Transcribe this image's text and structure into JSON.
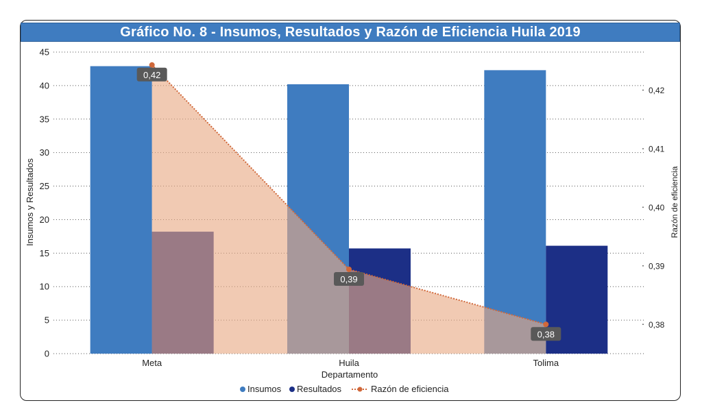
{
  "chart_data": {
    "type": "bar",
    "title": "Gráfico No. 8 - Insumos, Resultados y Razón de Eficiencia Huila 2019",
    "categories": [
      "Meta",
      "Huila",
      "Tolima"
    ],
    "xlabel": "Departamento",
    "ylabel": "Insumos y Resultados",
    "y2label": "Razón de eficiencia",
    "ylim": [
      0,
      45
    ],
    "yticks": [
      "0",
      "5",
      "10",
      "15",
      "20",
      "25",
      "30",
      "35",
      "40",
      "45"
    ],
    "y2lim": [
      0.375,
      0.4265
    ],
    "y2ticks": [
      {
        "value": 0.38,
        "label": "0,38"
      },
      {
        "value": 0.39,
        "label": "0,39"
      },
      {
        "value": 0.4,
        "label": "0,40"
      },
      {
        "value": 0.41,
        "label": "0,41"
      },
      {
        "value": 0.42,
        "label": "0,42"
      }
    ],
    "series": [
      {
        "name": "Insumos",
        "type": "bar",
        "color": "#3f7cc0",
        "values": [
          42.9,
          40.2,
          42.3
        ]
      },
      {
        "name": "Resultados",
        "type": "bar",
        "color": "#1c2f86",
        "values": [
          18.2,
          15.7,
          16.1
        ]
      },
      {
        "name": "Razón de eficiencia",
        "type": "line-area",
        "axis": "right",
        "color": "#d0683a",
        "fill": "#e9aa84",
        "values": [
          0.4243,
          0.3894,
          0.38
        ],
        "labels": [
          "0,42",
          "0,39",
          "0,38"
        ]
      }
    ],
    "legend": "bottom",
    "grid": true
  }
}
